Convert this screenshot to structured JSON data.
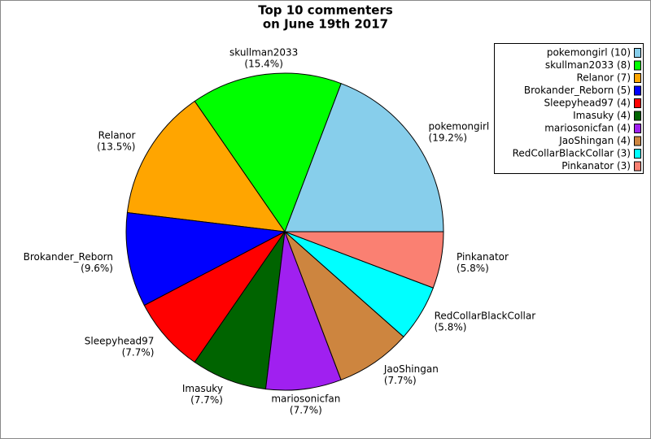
{
  "chart_data": {
    "type": "pie",
    "title": [
      "Top 10 commenters",
      "on June 19th 2017"
    ],
    "categories": [
      "pokemongirl",
      "skullman2033",
      "Relanor",
      "Brokander_Reborn",
      "Sleepyhead97",
      "Imasuky",
      "mariosonicfan",
      "JaoShingan",
      "RedCollarBlackCollar",
      "Pinkanator"
    ],
    "values": [
      10,
      8,
      7,
      5,
      4,
      4,
      4,
      4,
      3,
      3
    ],
    "pie_labels": [
      "(19.2%)",
      "(15.4%)",
      "(13.5%)",
      "(9.6%)",
      "(7.7%)",
      "(7.7%)",
      "(7.7%)",
      "(7.7%)",
      "(5.8%)",
      "(5.8%)"
    ],
    "legend_labels": [
      "pokemongirl (10)",
      "skullman2033 (8)",
      "Relanor (7)",
      "Brokander_Reborn (5)",
      "Sleepyhead97 (4)",
      "Imasuky (4)",
      "mariosonicfan (4)",
      "JaoShingan (4)",
      "RedCollarBlackCollar (3)",
      "Pinkanator (3)"
    ],
    "colors": [
      "#87ceeb",
      "#00ff00",
      "#ffa500",
      "#0000ff",
      "#ff0000",
      "#006400",
      "#a020f0",
      "#cd853f",
      "#00ffff",
      "#fa8072"
    ],
    "legend": "upper right"
  }
}
